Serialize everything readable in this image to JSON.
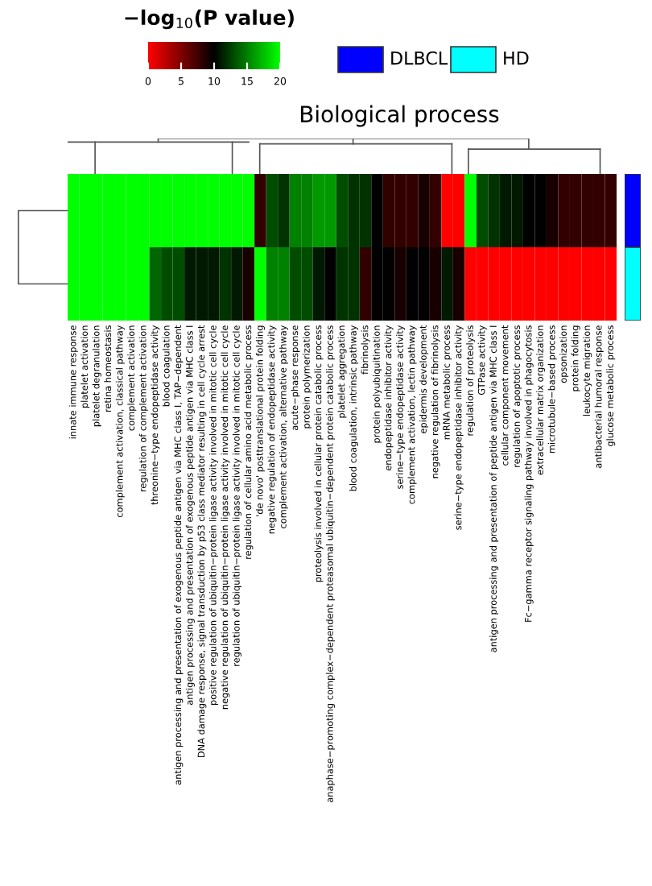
{
  "chart_data": {
    "type": "heatmap",
    "title": "Biological process",
    "clabel": "−log$_{10}$(P value)",
    "clim": [
      0,
      20
    ],
    "cticks": [
      0,
      5,
      10,
      15,
      20
    ],
    "tick_labels": "x",
    "annotations": [
      "DLBCL",
      "HD"
    ],
    "y_categories": [
      null,
      null
    ],
    "colors": [
      "#0000ff",
      "#00ffff"
    ],
    "categories": [
      "innate immune response",
      "platelet activation",
      "platelet degranulation",
      "retina homeostasis",
      "complement activation, classical pathway",
      "complement activation",
      "regulation of complement activation",
      "threonine−type endopeptidase activity",
      "blood coagulation",
      "antigen processing and presentation of exogenous peptide antigen via MHC class I, TAP−dependent",
      "antigen processing and presentation of exogenous peptide antigen via MHC class I",
      "DNA damage response, signal transduction by p53 class mediator resulting in cell cycle arrest",
      "positive regulation of ubiquitin−protein ligase activity involved in mitotic cell cycle",
      "negative regulation of ubiquitin−protein ligase activity involved in mitotic cell cycle",
      "regulation of ubiquitin−protein ligase activity involved in mitotic cell cycle",
      "regulation of cellular amino acid metabolic process",
      "'de novo' posttranslational protein folding",
      "negative regulation of endopeptidase activity",
      "complement activation, alternative pathway",
      "acute−phase response",
      "protein polymerization",
      "proteolysis involved in cellular protein catabolic process",
      "anaphase−promoting complex−dependent proteasomal ubiquitin−dependent protein catabolic process",
      "platelet aggregation",
      "blood coagulation, intrinsic pathway",
      "fibrinolysis",
      "protein polyubiquitination",
      "endopeptidase inhibitor activity",
      "serine−type endopeptidase activity",
      "complement activation, lectin pathway",
      "epidermis development",
      "negative regulation of fibrinolysis",
      "mRNA metabolic process",
      "serine−type endopeptidase inhibitor activity",
      "regulation of proteolysis",
      "GTPase activity",
      "antigen processing and presentation of peptide antigen via MHC class I",
      "cellular component movement",
      "regulation of apoptotic process",
      "Fc−gamma receptor signaling pathway involved in phagocytosis",
      "extracellular matrix organization",
      "microtubule−based process",
      "opsonization",
      "protein folding",
      "leukocyte migration",
      "antibacterial humoral response",
      "glucose metabolic process"
    ],
    "cells": [
      [
        20,
        20,
        20,
        20,
        20,
        20,
        20,
        20,
        20,
        20,
        20,
        20,
        20,
        20,
        20,
        20,
        8,
        13,
        12,
        15,
        15,
        16,
        16,
        13,
        12,
        12,
        10,
        8,
        8,
        8,
        9,
        8,
        0,
        0,
        20,
        13,
        12,
        11,
        11,
        10,
        10,
        9,
        8,
        8,
        8,
        8,
        8
      ],
      [
        20,
        20,
        20,
        20,
        20,
        20,
        20,
        14,
        13,
        13,
        11,
        11,
        11,
        12,
        11,
        9,
        20,
        15,
        15,
        13,
        13,
        11,
        10,
        12,
        12,
        8,
        10,
        10,
        9,
        10,
        10,
        9,
        11,
        9,
        0,
        0,
        0,
        0,
        0,
        0,
        0,
        0,
        0,
        0,
        0,
        0,
        0
      ]
    ]
  }
}
